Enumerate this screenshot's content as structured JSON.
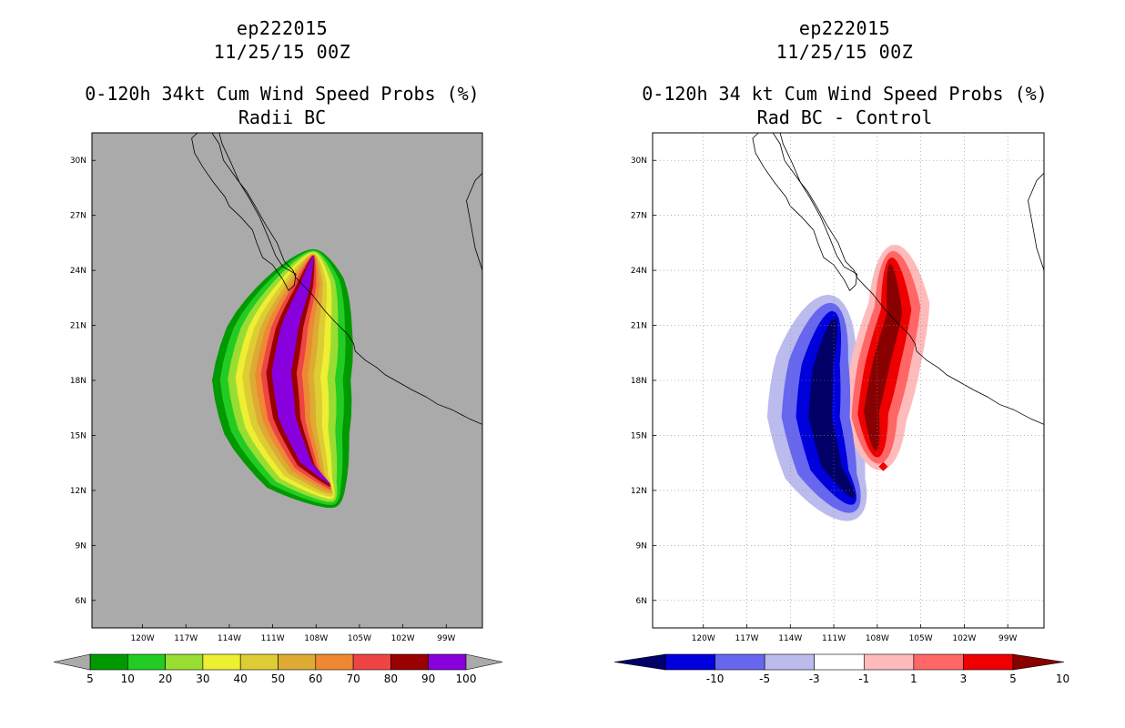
{
  "colors": {
    "land_bg": "#aaaaaa",
    "coast": "#000000",
    "grid": "#888888",
    "seq": [
      "#009900",
      "#22cc22",
      "#99dd33",
      "#eeee33",
      "#ddcc33",
      "#ddaa33",
      "#ee8833",
      "#ee4444",
      "#990000",
      "#8800dd"
    ],
    "div": [
      "#000066",
      "#0000dd",
      "#6666ee",
      "#bbbbee",
      "#ffffff",
      "#ffbbbb",
      "#ff6666",
      "#ee0000",
      "#880000"
    ]
  },
  "chart_data": [
    {
      "type": "heatmap",
      "title_lines": [
        "ep222015",
        "11/25/15 00Z"
      ],
      "title": "0-120h 34kt Cum Wind Speed Probs (%)",
      "subtitle": "Radii BC",
      "x_ticks": [
        "120W",
        "117W",
        "114W",
        "111W",
        "108W",
        "105W",
        "102W",
        "99W"
      ],
      "y_ticks": [
        "30N",
        "27N",
        "24N",
        "21N",
        "18N",
        "15N",
        "12N",
        "9N",
        "6N"
      ],
      "xlim": [
        -123.5,
        -96.5
      ],
      "ylim": [
        4.5,
        31.5
      ],
      "colorbar": {
        "labels": [
          "5",
          "10",
          "20",
          "30",
          "40",
          "50",
          "60",
          "70",
          "80",
          "90",
          "100"
        ]
      }
    },
    {
      "type": "heatmap",
      "title_lines": [
        "ep222015",
        "11/25/15 00Z"
      ],
      "title": "0-120h 34 kt Cum Wind Speed Probs (%)",
      "subtitle": "Rad BC - Control",
      "x_ticks": [
        "120W",
        "117W",
        "114W",
        "111W",
        "108W",
        "105W",
        "102W",
        "99W"
      ],
      "y_ticks": [
        "30N",
        "27N",
        "24N",
        "21N",
        "18N",
        "15N",
        "12N",
        "9N",
        "6N"
      ],
      "xlim": [
        -123.5,
        -96.5
      ],
      "ylim": [
        4.5,
        31.5
      ],
      "colorbar": {
        "labels": [
          "-10",
          "-5",
          "-3",
          "-1",
          "1",
          "3",
          "5",
          "10"
        ]
      }
    }
  ]
}
